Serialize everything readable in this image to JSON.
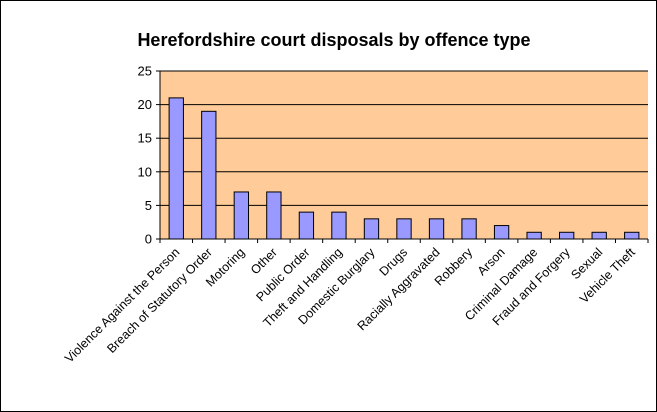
{
  "chart_data": {
    "type": "bar",
    "title": "Herefordshire court disposals by offence type",
    "xlabel": "",
    "ylabel": "",
    "categories": [
      "Violence Against the Person",
      "Breach of Statutory Order",
      "Motoring",
      "Other",
      "Public Order",
      "Theft and Handling",
      "Domestic Burglary",
      "Drugs",
      "Racially Aggravated",
      "Robbery",
      "Arson",
      "Criminal Damage",
      "Fraud and Forgery",
      "Sexual",
      "Vehicle Theft"
    ],
    "values": [
      21,
      19,
      7,
      7,
      4,
      4,
      3,
      3,
      3,
      3,
      2,
      1,
      1,
      1,
      1
    ],
    "ylim": [
      0,
      25
    ],
    "yticks": [
      0,
      5,
      10,
      15,
      20,
      25
    ],
    "grid": true,
    "legend": "none",
    "colors": {
      "bar_fill": "#9999ff",
      "bar_stroke": "#000000",
      "plot_background": "#ffcc99",
      "gridline": "#000000",
      "outer_border": "#000000"
    }
  }
}
